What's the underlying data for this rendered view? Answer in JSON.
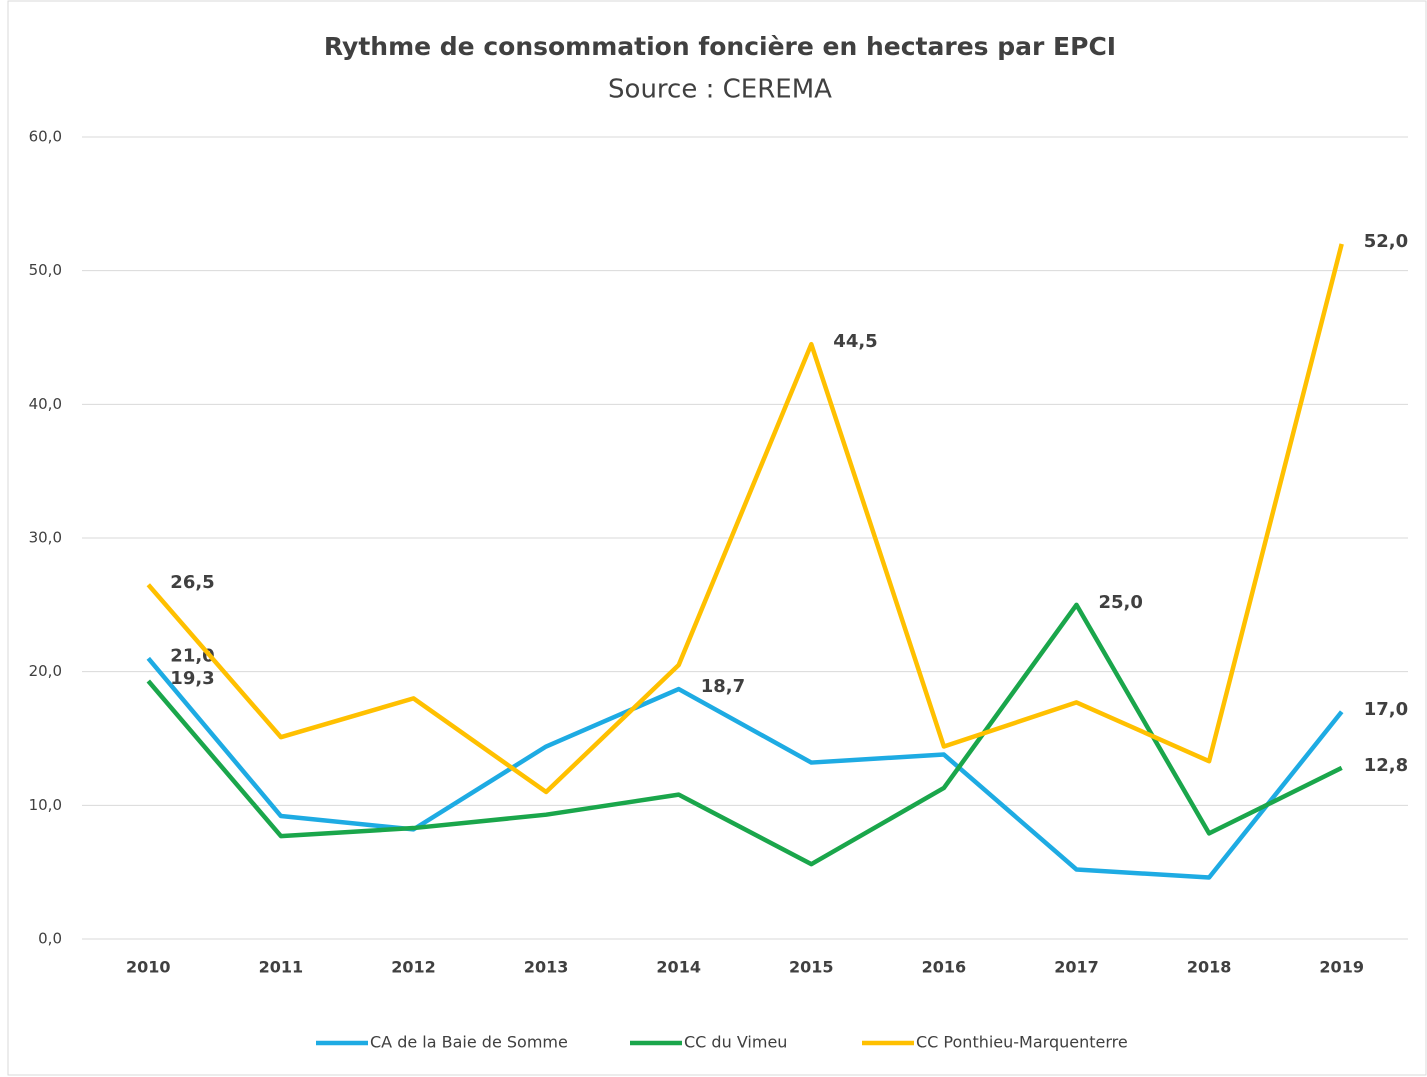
{
  "chart_data": {
    "type": "line",
    "title": "Rythme de consommation foncière en hectares par EPCI",
    "subtitle": "Source : CEREMA",
    "categories": [
      "2010",
      "2011",
      "2012",
      "2013",
      "2014",
      "2015",
      "2016",
      "2017",
      "2018",
      "2019"
    ],
    "series": [
      {
        "name": "CA de la Baie de Somme",
        "color": "#1eabe3",
        "values": [
          21.0,
          9.2,
          8.2,
          14.4,
          18.7,
          13.2,
          13.8,
          5.2,
          4.6,
          17.0
        ],
        "value_labels": [
          "21,0",
          null,
          null,
          null,
          "18,7",
          null,
          null,
          null,
          null,
          "17,0"
        ]
      },
      {
        "name": "CC du Vimeu",
        "color": "#1aa64b",
        "values": [
          19.3,
          7.7,
          8.3,
          9.3,
          10.8,
          5.6,
          11.3,
          25.0,
          7.9,
          12.8
        ],
        "value_labels": [
          "19,3",
          null,
          null,
          null,
          null,
          null,
          null,
          "25,0",
          null,
          "12,8"
        ]
      },
      {
        "name": "CC Ponthieu-Marquenterre",
        "color": "#ffc000",
        "values": [
          26.5,
          15.1,
          18.0,
          11.0,
          20.5,
          44.5,
          14.4,
          17.7,
          13.3,
          52.0
        ],
        "value_labels": [
          "26,5",
          null,
          null,
          null,
          null,
          "44,5",
          null,
          null,
          null,
          "52,0"
        ]
      }
    ],
    "ylim": [
      0,
      60
    ],
    "yticks": [
      {
        "value": 0,
        "label": "0,0"
      },
      {
        "value": 10,
        "label": "10,0"
      },
      {
        "value": 20,
        "label": "20,0"
      },
      {
        "value": 30,
        "label": "30,0"
      },
      {
        "value": 40,
        "label": "40,0"
      },
      {
        "value": 50,
        "label": "50,0"
      },
      {
        "value": 60,
        "label": "60,0"
      }
    ],
    "grid": true,
    "legend": "bottom"
  }
}
